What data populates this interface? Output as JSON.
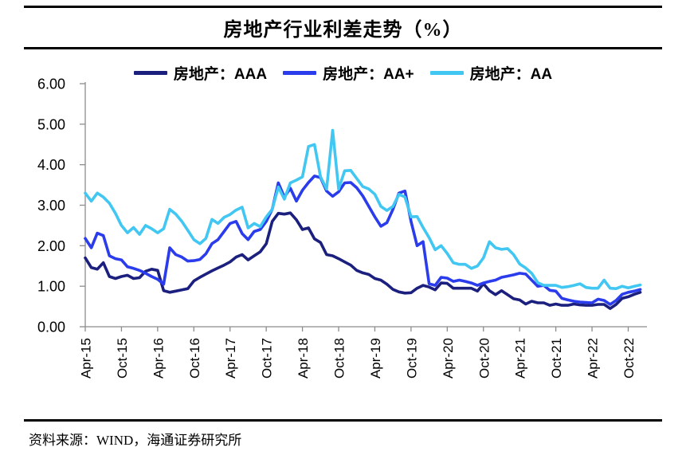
{
  "header": {
    "title": "房地产行业利差走势（%）"
  },
  "footer": {
    "source_text": "资料来源：WIND，海通证券研究所"
  },
  "chart_data": {
    "type": "line",
    "title": "房地产行业利差走势（%）",
    "xlabel": "",
    "ylabel": "",
    "ylim": [
      0,
      6
    ],
    "grid": false,
    "legend_position": "top",
    "x_start": "Apr-15",
    "x_interval": "monthly",
    "x_tick_labels": [
      "Apr-15",
      "Oct-15",
      "Apr-16",
      "Oct-16",
      "Apr-17",
      "Oct-17",
      "Apr-18",
      "Oct-18",
      "Apr-19",
      "Oct-19",
      "Apr-20",
      "Oct-20",
      "Apr-21",
      "Oct-21",
      "Apr-22",
      "Oct-22"
    ],
    "y_tick_labels": [
      "6.00",
      "5.00",
      "4.00",
      "3.00",
      "2.00",
      "1.00",
      "0.00"
    ],
    "axis_color": "#8c8c8c",
    "series": [
      {
        "name": "房地产：AAA",
        "color": "#1b1f7e",
        "values": [
          1.7,
          1.46,
          1.42,
          1.58,
          1.24,
          1.19,
          1.24,
          1.27,
          1.19,
          1.21,
          1.37,
          1.42,
          1.39,
          0.89,
          0.85,
          0.88,
          0.91,
          0.94,
          1.13,
          1.22,
          1.3,
          1.38,
          1.45,
          1.52,
          1.6,
          1.72,
          1.78,
          1.65,
          1.75,
          1.85,
          2.05,
          2.6,
          2.8,
          2.78,
          2.81,
          2.64,
          2.4,
          2.44,
          2.17,
          2.08,
          1.78,
          1.75,
          1.68,
          1.6,
          1.52,
          1.39,
          1.33,
          1.29,
          1.19,
          1.15,
          1.05,
          0.92,
          0.86,
          0.83,
          0.84,
          0.95,
          1.02,
          0.98,
          0.91,
          1.08,
          1.07,
          0.95,
          0.95,
          0.95,
          0.95,
          0.88,
          1.06,
          0.89,
          0.79,
          0.89,
          0.79,
          0.69,
          0.66,
          0.56,
          0.63,
          0.59,
          0.59,
          0.53,
          0.56,
          0.53,
          0.53,
          0.56,
          0.54,
          0.53,
          0.53,
          0.55,
          0.55,
          0.45,
          0.55,
          0.7,
          0.74,
          0.8,
          0.85
        ]
      },
      {
        "name": "房地产：AA+",
        "color": "#2a3cec",
        "values": [
          2.18,
          1.95,
          2.31,
          2.25,
          1.75,
          1.68,
          1.65,
          1.48,
          1.44,
          1.39,
          1.32,
          1.24,
          1.17,
          1.05,
          1.95,
          1.78,
          1.72,
          1.62,
          1.63,
          1.66,
          1.8,
          2.05,
          2.15,
          2.35,
          2.55,
          2.6,
          2.3,
          2.15,
          2.35,
          2.4,
          2.6,
          2.9,
          3.55,
          3.2,
          3.42,
          3.1,
          3.37,
          3.56,
          3.72,
          3.68,
          3.35,
          3.22,
          3.33,
          3.55,
          3.56,
          3.43,
          3.23,
          2.97,
          2.71,
          2.48,
          2.57,
          2.9,
          3.3,
          3.35,
          2.6,
          2.0,
          2.1,
          1.06,
          1.02,
          1.22,
          1.2,
          1.12,
          1.15,
          1.12,
          1.08,
          1.02,
          1.08,
          1.12,
          1.15,
          1.22,
          1.25,
          1.28,
          1.32,
          1.3,
          1.15,
          1.0,
          1.02,
          0.9,
          0.88,
          0.7,
          0.66,
          0.63,
          0.61,
          0.6,
          0.59,
          0.68,
          0.65,
          0.55,
          0.65,
          0.8,
          0.85,
          0.88,
          0.92
        ]
      },
      {
        "name": "房地产：AA",
        "color": "#41c7f2",
        "values": [
          3.3,
          3.1,
          3.3,
          3.2,
          3.05,
          2.8,
          2.5,
          2.32,
          2.45,
          2.28,
          2.5,
          2.42,
          2.32,
          2.42,
          2.9,
          2.78,
          2.6,
          2.38,
          2.15,
          2.05,
          2.18,
          2.65,
          2.55,
          2.7,
          2.77,
          2.88,
          2.95,
          2.44,
          2.55,
          2.47,
          2.71,
          2.9,
          3.45,
          3.15,
          3.55,
          3.62,
          3.7,
          4.45,
          4.5,
          3.7,
          3.4,
          4.85,
          3.4,
          3.85,
          3.86,
          3.66,
          3.46,
          3.4,
          3.27,
          2.97,
          2.87,
          2.97,
          3.27,
          3.2,
          2.71,
          2.72,
          2.45,
          2.2,
          1.9,
          2.0,
          1.81,
          1.58,
          1.54,
          1.54,
          1.44,
          1.5,
          1.7,
          2.1,
          1.95,
          1.91,
          1.93,
          1.78,
          1.55,
          1.45,
          1.32,
          1.09,
          1.02,
          1.02,
          1.02,
          0.97,
          0.99,
          1.02,
          1.06,
          0.97,
          0.95,
          0.95,
          1.15,
          0.95,
          0.94,
          1.0,
          0.96,
          1.0,
          1.03
        ]
      }
    ]
  }
}
